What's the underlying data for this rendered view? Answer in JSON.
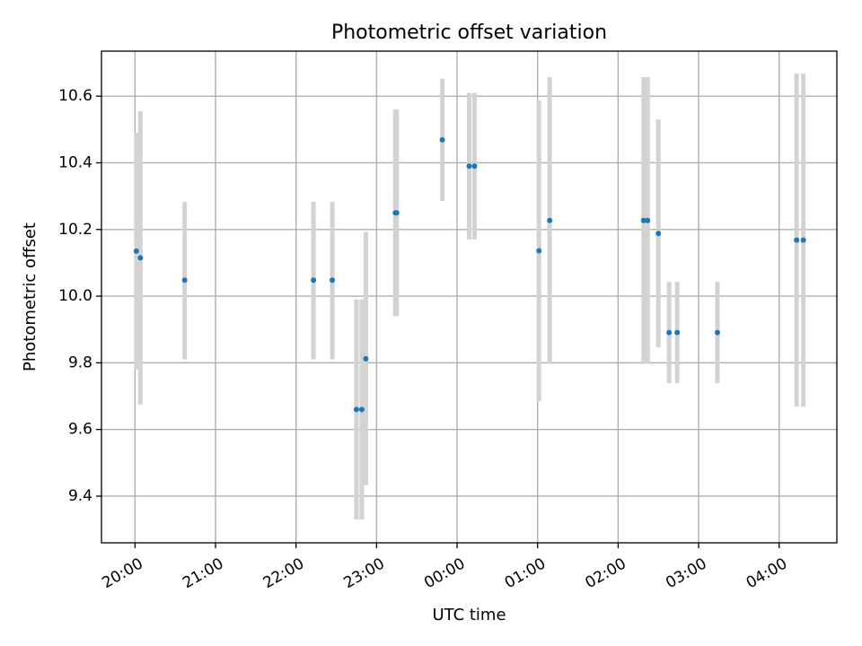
{
  "chart_data": {
    "type": "scatter",
    "title": "Photometric offset variation",
    "xlabel": "UTC time",
    "ylabel": "Photometric offset",
    "xlim": [
      "19:35",
      "04:43"
    ],
    "ylim": [
      9.26,
      10.735
    ],
    "x_ticks": [
      "20:00",
      "21:00",
      "22:00",
      "23:00",
      "00:00",
      "01:00",
      "02:00",
      "03:00",
      "04:00"
    ],
    "y_ticks": [
      9.4,
      9.6,
      9.8,
      10.0,
      10.2,
      10.4,
      10.6
    ],
    "y_tick_labels": [
      "9.4",
      "9.6",
      "9.8",
      "10.0",
      "10.2",
      "10.4",
      "10.6"
    ],
    "grid": true,
    "point_color": "#1f77b4",
    "errorbar_color": "#d3d3d3",
    "points": [
      {
        "time": "20:01",
        "y": 10.135,
        "err_low": 9.78,
        "err_high": 10.49
      },
      {
        "time": "20:04",
        "y": 10.115,
        "err_low": 9.675,
        "err_high": 10.555
      },
      {
        "time": "20:37",
        "y": 10.048,
        "err_low": 9.81,
        "err_high": 10.283
      },
      {
        "time": "22:13",
        "y": 10.048,
        "err_low": 9.81,
        "err_high": 10.283
      },
      {
        "time": "22:27",
        "y": 10.048,
        "err_low": 9.81,
        "err_high": 10.283
      },
      {
        "time": "22:45",
        "y": 9.66,
        "err_low": 9.33,
        "err_high": 9.99
      },
      {
        "time": "22:49",
        "y": 9.66,
        "err_low": 9.33,
        "err_high": 9.99
      },
      {
        "time": "22:52",
        "y": 9.812,
        "err_low": 9.433,
        "err_high": 10.193
      },
      {
        "time": "23:14",
        "y": 10.25,
        "err_low": 9.94,
        "err_high": 10.56
      },
      {
        "time": "23:15",
        "y": 10.25,
        "err_low": 9.94,
        "err_high": 10.56
      },
      {
        "time": "23:49",
        "y": 10.469,
        "err_low": 10.285,
        "err_high": 10.653
      },
      {
        "time": "00:09",
        "y": 10.39,
        "err_low": 10.17,
        "err_high": 10.61
      },
      {
        "time": "00:13",
        "y": 10.39,
        "err_low": 10.17,
        "err_high": 10.61
      },
      {
        "time": "01:01",
        "y": 10.136,
        "err_low": 9.685,
        "err_high": 10.587
      },
      {
        "time": "01:09",
        "y": 10.227,
        "err_low": 9.797,
        "err_high": 10.657
      },
      {
        "time": "02:19",
        "y": 10.227,
        "err_low": 9.797,
        "err_high": 10.657
      },
      {
        "time": "02:22",
        "y": 10.227,
        "err_low": 9.797,
        "err_high": 10.657
      },
      {
        "time": "02:30",
        "y": 10.188,
        "err_low": 9.846,
        "err_high": 10.53
      },
      {
        "time": "02:38",
        "y": 9.891,
        "err_low": 9.739,
        "err_high": 10.043
      },
      {
        "time": "02:44",
        "y": 9.891,
        "err_low": 9.739,
        "err_high": 10.043
      },
      {
        "time": "03:14",
        "y": 9.891,
        "err_low": 9.739,
        "err_high": 10.043
      },
      {
        "time": "04:13",
        "y": 10.168,
        "err_low": 9.668,
        "err_high": 10.668
      },
      {
        "time": "04:18",
        "y": 10.168,
        "err_low": 9.668,
        "err_high": 10.668
      }
    ]
  }
}
